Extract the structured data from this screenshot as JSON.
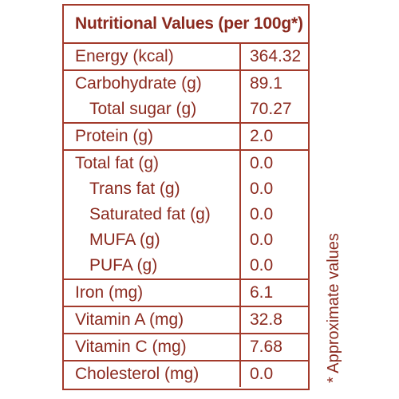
{
  "title": "Nutritional Values (per 100g*)",
  "groups": [
    {
      "rows": [
        {
          "label": "Energy (kcal)",
          "value": "364.32"
        }
      ]
    },
    {
      "rows": [
        {
          "label": "Carbohydrate (g)",
          "value": "89.1"
        },
        {
          "label": "Total sugar (g)",
          "value": "70.27"
        }
      ]
    },
    {
      "rows": [
        {
          "label": "Protein (g)",
          "value": "2.0"
        }
      ]
    },
    {
      "rows": [
        {
          "label": "Total fat (g)",
          "value": "0.0"
        },
        {
          "label": "Trans fat (g)",
          "value": "0.0"
        },
        {
          "label": "Saturated fat (g)",
          "value": "0.0"
        },
        {
          "label": "MUFA (g)",
          "value": "0.0"
        },
        {
          "label": "PUFA (g)",
          "value": "0.0"
        }
      ]
    },
    {
      "rows": [
        {
          "label": "Iron (mg)",
          "value": "6.1"
        }
      ]
    },
    {
      "rows": [
        {
          "label": "Vitamin A (mg)",
          "value": "32.8"
        }
      ]
    },
    {
      "rows": [
        {
          "label": "Vitamin C (mg)",
          "value": "7.68"
        }
      ]
    },
    {
      "rows": [
        {
          "label": "Cholesterol (mg)",
          "value": "0.0"
        }
      ]
    }
  ],
  "footnote": "* Approximate values",
  "colors": {
    "text": "#8b2a1f",
    "border": "#a33a2b"
  }
}
